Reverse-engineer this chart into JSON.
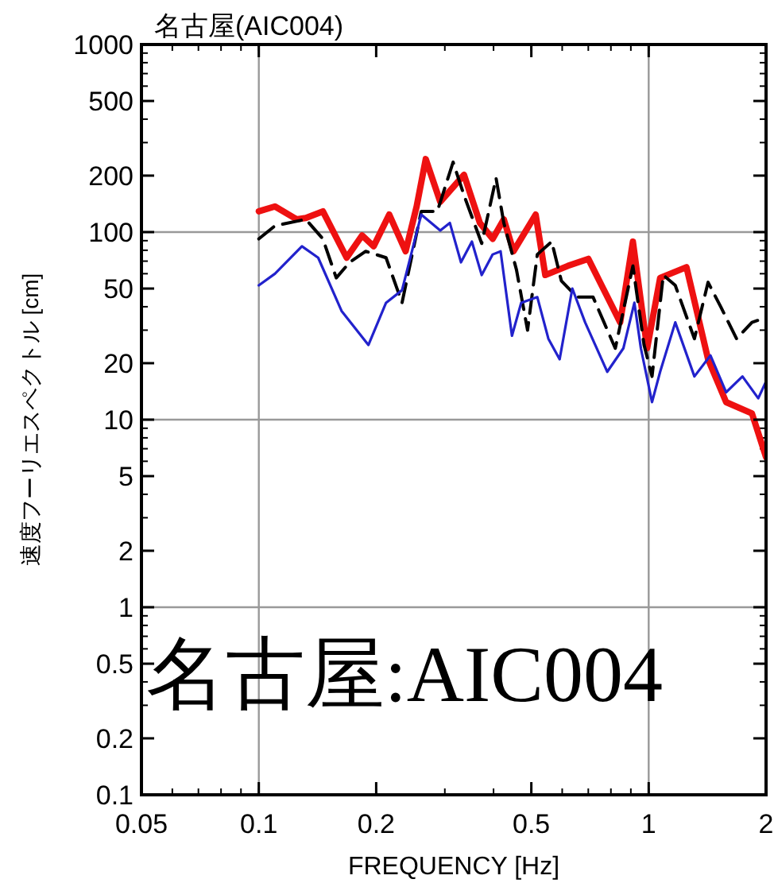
{
  "chart_data": {
    "type": "line",
    "title": "名古屋(AIC004)",
    "xlabel": "FREQUENCY [Hz]",
    "ylabel": "速度フーリエスペクトル [cm]",
    "log": "xy",
    "xlim": [
      0.05,
      2
    ],
    "xticks": [
      0.05,
      0.1,
      0.2,
      0.5,
      1,
      2
    ],
    "ylim": [
      0.1,
      1000
    ],
    "yticks": [
      0.1,
      0.2,
      0.5,
      1,
      2,
      5,
      10,
      20,
      50,
      100,
      200,
      500,
      1000
    ],
    "ref_lines": [
      {
        "axis": "x",
        "value": 0.1,
        "color": "#999999"
      },
      {
        "axis": "x",
        "value": 1,
        "color": "#999999"
      },
      {
        "axis": "y",
        "value": 1,
        "color": "#999999"
      },
      {
        "axis": "y",
        "value": 10,
        "color": "#999999"
      },
      {
        "axis": "y",
        "value": 100,
        "color": "#999999"
      }
    ],
    "annotations": [
      "名古屋:AIC004"
    ],
    "series": [
      {
        "color": "#ee1111",
        "line_style": "solid",
        "x": [
          0.1,
          0.11,
          0.125,
          0.132,
          0.146,
          0.168,
          0.184,
          0.197,
          0.216,
          0.238,
          0.254,
          0.268,
          0.292,
          0.336,
          0.369,
          0.398,
          0.425,
          0.45,
          0.513,
          0.543,
          0.62,
          0.7,
          0.845,
          0.911,
          0.991,
          1.07,
          1.25,
          1.42,
          1.58,
          1.84,
          2.0
        ],
        "values": [
          129,
          137,
          117,
          119,
          129,
          73,
          96,
          84,
          124,
          79,
          137,
          245,
          145,
          202,
          112,
          92,
          117,
          79,
          124,
          59,
          66,
          72,
          33,
          89,
          24,
          57,
          65,
          21,
          12.4,
          10.8,
          6.3
        ]
      },
      {
        "color": "#000000",
        "line_style": "dashed",
        "x": [
          0.1,
          0.11,
          0.132,
          0.146,
          0.158,
          0.171,
          0.188,
          0.212,
          0.233,
          0.261,
          0.287,
          0.315,
          0.336,
          0.373,
          0.406,
          0.425,
          0.458,
          0.489,
          0.518,
          0.564,
          0.597,
          0.655,
          0.72,
          0.821,
          0.911,
          0.973,
          1.02,
          1.09,
          1.17,
          1.31,
          1.42,
          1.53,
          1.68,
          1.84,
          2.0
        ],
        "values": [
          92,
          108,
          117,
          92,
          57,
          69,
          79,
          73,
          42,
          129,
          129,
          236,
          157,
          87,
          194,
          112,
          63,
          30,
          76,
          89,
          55,
          45,
          45,
          24,
          66,
          25,
          17,
          59,
          52,
          27,
          54,
          40,
          27,
          33,
          35
        ]
      },
      {
        "color": "#2222cc",
        "line_style": "solid",
        "x": [
          0.1,
          0.11,
          0.129,
          0.142,
          0.163,
          0.191,
          0.212,
          0.233,
          0.261,
          0.292,
          0.309,
          0.33,
          0.352,
          0.373,
          0.398,
          0.417,
          0.446,
          0.471,
          0.518,
          0.553,
          0.591,
          0.637,
          0.687,
          0.783,
          0.861,
          0.919,
          0.955,
          1.02,
          1.07,
          1.17,
          1.31,
          1.44,
          1.58,
          1.74,
          1.91,
          2.0
        ],
        "values": [
          52,
          60,
          84,
          73,
          38,
          25,
          42,
          49,
          124,
          102,
          112,
          69,
          89,
          59,
          76,
          79,
          28,
          42,
          45,
          27,
          21,
          50,
          33,
          18,
          24,
          42,
          24,
          12.4,
          18,
          33,
          17,
          22,
          14,
          17,
          13,
          16
        ]
      }
    ]
  }
}
